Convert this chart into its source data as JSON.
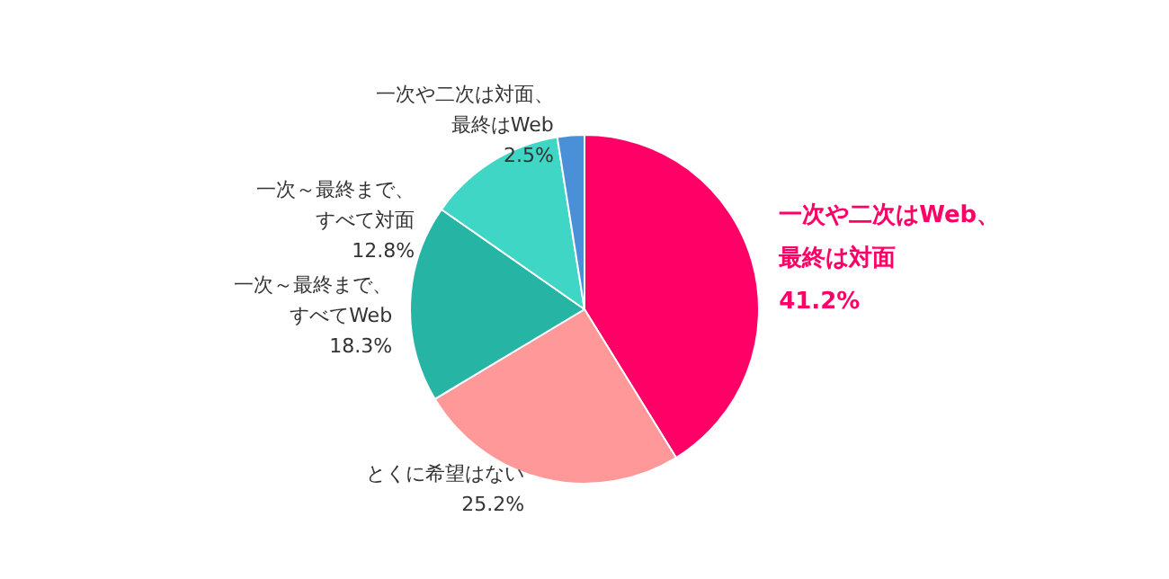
{
  "chart_data": {
    "type": "pie",
    "categories": [
      "一次や二次はWeb、最終は対面",
      "とくに希望はない",
      "一次～最終まで、すべてWeb",
      "一次～最終まで、すべて対面",
      "一次や二次は対面、最終はWeb"
    ],
    "values": [
      41.2,
      25.2,
      18.3,
      12.8,
      2.5
    ],
    "value_labels": [
      "41.2%",
      "25.2%",
      "18.3%",
      "12.8%",
      "2.5%"
    ],
    "colors": [
      "#ff0066",
      "#ff9999",
      "#26b5a5",
      "#40d6c6",
      "#4a90d9"
    ],
    "legend": false
  }
}
